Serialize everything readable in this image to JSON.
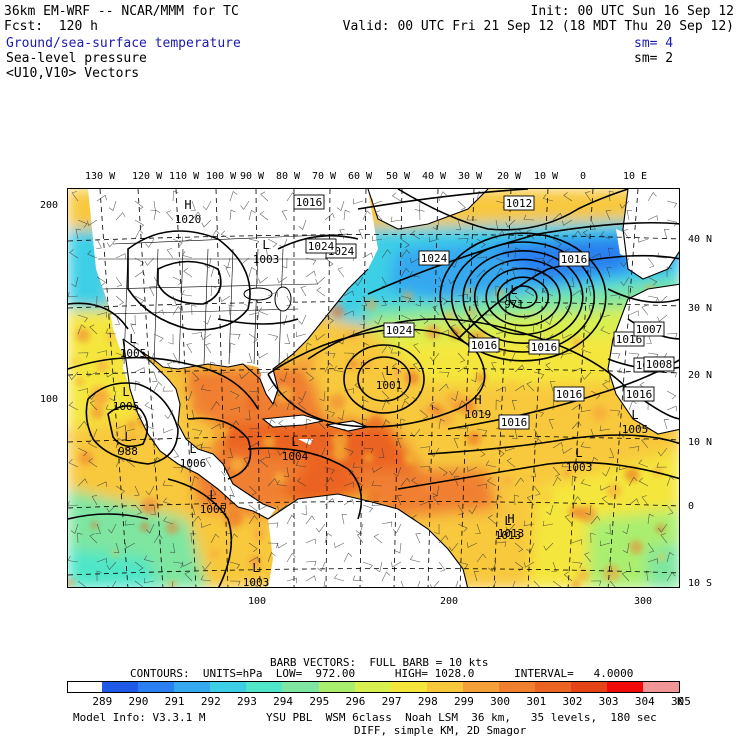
{
  "header": {
    "model_title": "36km EM-WRF -- NCAR/MMM for TC",
    "init": "Init: 00 UTC Sun 16 Sep 12",
    "forecast": "Fcst:  120 h",
    "valid": "Valid: 00 UTC Fri 21 Sep 12 (18 MDT Thu 20 Sep 12)",
    "field1": "Ground/sea-surface temperature",
    "field1_sm": "sm= 4",
    "field2": "Sea-level pressure",
    "field2_sm": "sm= 2",
    "field3": "<U10,V10> Vectors"
  },
  "colors": {
    "field_text": "#1a1ab0",
    "land": "#ffffff",
    "scale": [
      "#ffffff",
      "#1e5ae6",
      "#2a80f0",
      "#36a8f0",
      "#3ccfe6",
      "#50e6c8",
      "#7ee6a0",
      "#aaee70",
      "#d8f050",
      "#f5e63c",
      "#f8c83c",
      "#f5a03a",
      "#f07f30",
      "#eb6422",
      "#e54516",
      "#f00a0a",
      "#f09696"
    ]
  },
  "map": {
    "lon_labels": [
      "130 W",
      "120 W",
      "110 W",
      "100 W",
      "90 W",
      "80 W",
      "70 W",
      "60 W",
      "50 W",
      "40 W",
      "30 W",
      "20 W",
      "10 W",
      "0",
      "10 E"
    ],
    "lat_labels": [
      "40 N",
      "30 N",
      "20 N",
      "10 N",
      "0",
      "10 S"
    ],
    "grid_left": [
      "200",
      "100"
    ],
    "grid_bottom": [
      "100",
      "200",
      "300"
    ],
    "pressure_labels": [
      "1016",
      "1024",
      "1012",
      "1024",
      "1024",
      "1016",
      "1024",
      "1016",
      "1016",
      "1008",
      "1016",
      "1016",
      "1016",
      "1007",
      "1008",
      "1016"
    ],
    "low_centers": [
      "1003",
      "971",
      "1001",
      "1005",
      "1005",
      "988",
      "1006",
      "1004",
      "1005",
      "1003",
      "1003",
      "1005",
      "1013"
    ],
    "high_centers": [
      "1020",
      "1019",
      "1013"
    ],
    "highs_marker": "H",
    "lows_marker": "L"
  },
  "footer": {
    "barb_vectors": "BARB VECTORS:  FULL BARB = 10 kts",
    "contours": "CONTOURS:  UNITS=hPa  LOW=  972.00      HIGH= 1028.0      INTERVAL=   4.0000",
    "scale_values": [
      "289",
      "290",
      "291",
      "292",
      "293",
      "294",
      "295",
      "296",
      "297",
      "298",
      "299",
      "300",
      "301",
      "302",
      "303",
      "304",
      "305"
    ],
    "scale_unit": "K",
    "model_info": "Model Info: V3.3.1 M",
    "physics": "YSU PBL  WSM 6class  Noah LSM  36 km,   35 levels,  180 sec",
    "diff": "DIFF, simple KM, 2D Smagor"
  }
}
